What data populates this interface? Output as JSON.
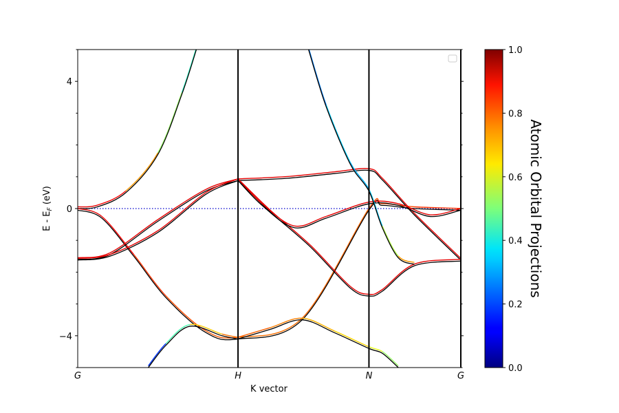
{
  "chart_data": {
    "type": "line",
    "xlabel": "K vector",
    "ylabel": "E - E_F (eV)",
    "ylabel_parts": {
      "main": "E - E",
      "sub": "F",
      "unit": " (eV)"
    },
    "ylim": [
      -5,
      5
    ],
    "yticks": [
      -4,
      0,
      4
    ],
    "kpath": [
      {
        "label": "G",
        "x": 0.0
      },
      {
        "label": "H",
        "x": 1.0
      },
      {
        "label": "N",
        "x": 1.8167
      },
      {
        "label": "G",
        "x": 2.3897
      }
    ],
    "fermi_level": 0,
    "legend": "top-right, empty",
    "colorbar": {
      "label": "Atomic Orbital Projections",
      "colormap": "jet",
      "ticks": [
        "0.0",
        "0.2",
        "0.4",
        "0.6",
        "0.8",
        "1.0"
      ],
      "range": [
        0,
        1
      ]
    },
    "bands": [
      {
        "x": [
          0,
          0.12,
          0.3,
          0.5,
          0.65,
          0.74
        ],
        "y": [
          0,
          0.05,
          0.5,
          1.7,
          3.6,
          5.0
        ],
        "weights": [
          0.9,
          0.9,
          0.85,
          0.6,
          0.45,
          0.4
        ]
      },
      {
        "x": [
          0,
          0.15,
          0.35,
          0.55,
          0.8,
          1.0,
          1.4,
          1.8167,
          1.9,
          2.1,
          2.3897
        ],
        "y": [
          -0.05,
          -0.3,
          -1.5,
          -2.8,
          -3.9,
          -4.1,
          -3.5,
          -0.05,
          0.1,
          0.0,
          -0.05
        ],
        "weights": [
          0.9,
          0.9,
          0.85,
          0.8,
          0.8,
          0.78,
          0.75,
          0.8,
          0.8,
          0.8,
          0.85
        ]
      },
      {
        "x": [
          0,
          0.2,
          0.5,
          0.8,
          1.0
        ],
        "y": [
          -1.6,
          -1.45,
          -0.4,
          0.55,
          0.88
        ],
        "weights": [
          0.9,
          0.9,
          0.9,
          0.9,
          0.9
        ]
      },
      {
        "x": [
          0,
          0.2,
          0.5,
          0.8,
          1.0
        ],
        "y": [
          -1.62,
          -1.5,
          -0.75,
          0.45,
          0.88
        ],
        "weights": [
          0.9,
          0.9,
          0.9,
          0.9,
          0.9
        ]
      },
      {
        "x": [
          1.0,
          1.3,
          1.6,
          1.8167,
          1.9,
          2.1,
          2.3897
        ],
        "y": [
          0.88,
          0.95,
          1.1,
          1.2,
          0.9,
          -0.2,
          -1.62
        ],
        "weights": [
          0.9,
          0.9,
          0.9,
          0.9,
          0.9,
          0.9,
          0.9
        ]
      },
      {
        "x": [
          1.0,
          1.2,
          1.45,
          1.7,
          1.8167,
          1.9,
          2.1,
          2.3897
        ],
        "y": [
          0.88,
          -0.1,
          -1.2,
          -2.5,
          -2.75,
          -2.6,
          -1.8,
          -1.65
        ],
        "weights": [
          0.9,
          0.9,
          0.9,
          0.9,
          0.9,
          0.9,
          0.9,
          0.9
        ]
      },
      {
        "x": [
          1.0,
          1.15,
          1.35,
          1.55,
          1.8167,
          2.0,
          2.2,
          2.3897
        ],
        "y": [
          0.88,
          0.1,
          -0.6,
          -0.3,
          0.15,
          0.1,
          -0.25,
          -0.05
        ],
        "weights": [
          0.9,
          0.9,
          0.9,
          0.9,
          0.9,
          0.9,
          0.9,
          0.9
        ]
      },
      {
        "x": [
          1.44,
          1.55,
          1.7,
          1.8167,
          1.9,
          2.0,
          2.1
        ],
        "y": [
          5.0,
          3.2,
          1.4,
          0.55,
          -0.6,
          -1.55,
          -1.75
        ],
        "weights": [
          0.2,
          0.3,
          0.35,
          0.25,
          0.4,
          0.7,
          0.75
        ]
      },
      {
        "x": [
          0.44,
          0.55,
          0.7,
          0.9,
          1.0
        ],
        "y": [
          -5.0,
          -4.3,
          -3.7,
          -4.0,
          -4.1
        ],
        "weights": [
          0.05,
          0.3,
          0.6,
          0.75,
          0.78
        ]
      },
      {
        "x": [
          1.0,
          1.2,
          1.4,
          1.6,
          1.8167,
          1.9,
          2.0
        ],
        "y": [
          -4.1,
          -3.8,
          -3.5,
          -3.9,
          -4.4,
          -4.55,
          -5.0
        ],
        "weights": [
          0.78,
          0.78,
          0.72,
          0.68,
          0.65,
          0.55,
          0.5
        ]
      }
    ]
  }
}
